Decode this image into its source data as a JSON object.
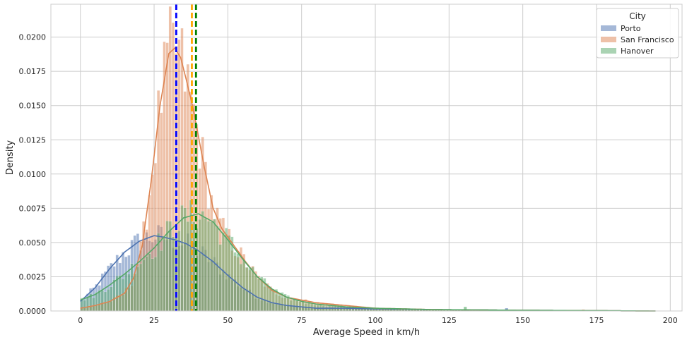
{
  "chart_data": {
    "type": "histogram",
    "xlabel": "Average Speed in km/h",
    "ylabel": "Density",
    "xlim": [
      -10,
      204
    ],
    "ylim": [
      0,
      0.0224
    ],
    "x_ticks": [
      0,
      25,
      50,
      75,
      100,
      125,
      150,
      175,
      200
    ],
    "x_tick_labels": [
      "0",
      "25",
      "50",
      "75",
      "100",
      "125",
      "150",
      "175",
      "200"
    ],
    "y_ticks": [
      0,
      0.0025,
      0.005,
      0.0075,
      0.01,
      0.0125,
      0.015,
      0.0175,
      0.02
    ],
    "y_tick_labels": [
      "0.0000",
      "0.0025",
      "0.0050",
      "0.0075",
      "0.0100",
      "0.0125",
      "0.0150",
      "0.0175",
      "0.0200"
    ],
    "grid": true,
    "legend": {
      "title": "City",
      "placement": "top-right",
      "entries": [
        {
          "label": "Porto",
          "color": "#4c72b0"
        },
        {
          "label": "San Francisco",
          "color": "#dd8452"
        },
        {
          "label": "Hanover",
          "color": "#55a868"
        }
      ]
    },
    "kde_series": [
      {
        "name": "Porto",
        "color": "#4c72b0",
        "x": [
          0,
          5,
          10,
          15,
          20,
          25,
          28,
          32,
          36,
          40,
          45,
          50,
          55,
          60,
          65,
          70,
          75,
          80,
          90,
          100,
          120,
          150,
          195
        ],
        "y": [
          0.0007,
          0.0017,
          0.0031,
          0.0043,
          0.0051,
          0.0055,
          0.0054,
          0.0052,
          0.0049,
          0.0044,
          0.0036,
          0.0026,
          0.0017,
          0.001,
          0.0006,
          0.0004,
          0.0003,
          0.0002,
          0.0002,
          0.00015,
          0.0001,
          5e-05,
          0.0
        ]
      },
      {
        "name": "San Francisco",
        "color": "#dd8452",
        "x": [
          0,
          5,
          10,
          15,
          18,
          21,
          24,
          27,
          30,
          32,
          34,
          36,
          38,
          40,
          42,
          45,
          48,
          52,
          56,
          60,
          65,
          70,
          80,
          90,
          100,
          120,
          150,
          195
        ],
        "y": [
          0.0002,
          0.0004,
          0.0007,
          0.0013,
          0.0024,
          0.0048,
          0.0095,
          0.015,
          0.0188,
          0.0192,
          0.0185,
          0.0168,
          0.015,
          0.0128,
          0.0105,
          0.0075,
          0.006,
          0.0048,
          0.0036,
          0.0025,
          0.0015,
          0.001,
          0.0006,
          0.0004,
          0.0002,
          0.0001,
          5e-05,
          0.0
        ]
      },
      {
        "name": "Hanover",
        "color": "#55a868",
        "x": [
          0,
          5,
          10,
          15,
          20,
          25,
          30,
          35,
          40,
          45,
          50,
          55,
          60,
          65,
          70,
          75,
          80,
          90,
          100,
          120,
          150,
          195
        ],
        "y": [
          0.0008,
          0.0012,
          0.0019,
          0.0027,
          0.0036,
          0.0046,
          0.0058,
          0.0068,
          0.0071,
          0.0065,
          0.0052,
          0.0038,
          0.0025,
          0.0016,
          0.001,
          0.0007,
          0.0005,
          0.0003,
          0.0002,
          0.0001,
          5e-05,
          0.0
        ]
      }
    ],
    "mean_lines": [
      {
        "name": "Porto",
        "x": 32.5,
        "color": "#0000ff"
      },
      {
        "name": "San Francisco",
        "x": 37.8,
        "color": "#ffa500"
      },
      {
        "name": "Hanover",
        "x": 39.2,
        "color": "#008000"
      }
    ],
    "histogram": {
      "bin_width": 1,
      "colors": {
        "Porto": "#4c72b0",
        "San Francisco": "#dd8452",
        "Hanover": "#55a868"
      },
      "bar_alpha": 0.5
    }
  }
}
